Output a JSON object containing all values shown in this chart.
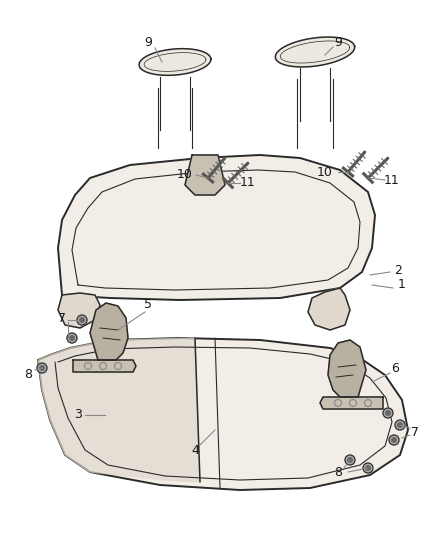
{
  "bg_color": "#ffffff",
  "line_color": "#2a2a2a",
  "fill_seat": "#f2ede6",
  "fill_seat_dark": "#e0d8cc",
  "fill_latch": "#c8bfb0",
  "label_color": "#1a1a1a",
  "callout_color": "#888888",
  "figsize": [
    4.38,
    5.33
  ],
  "dpi": 100
}
